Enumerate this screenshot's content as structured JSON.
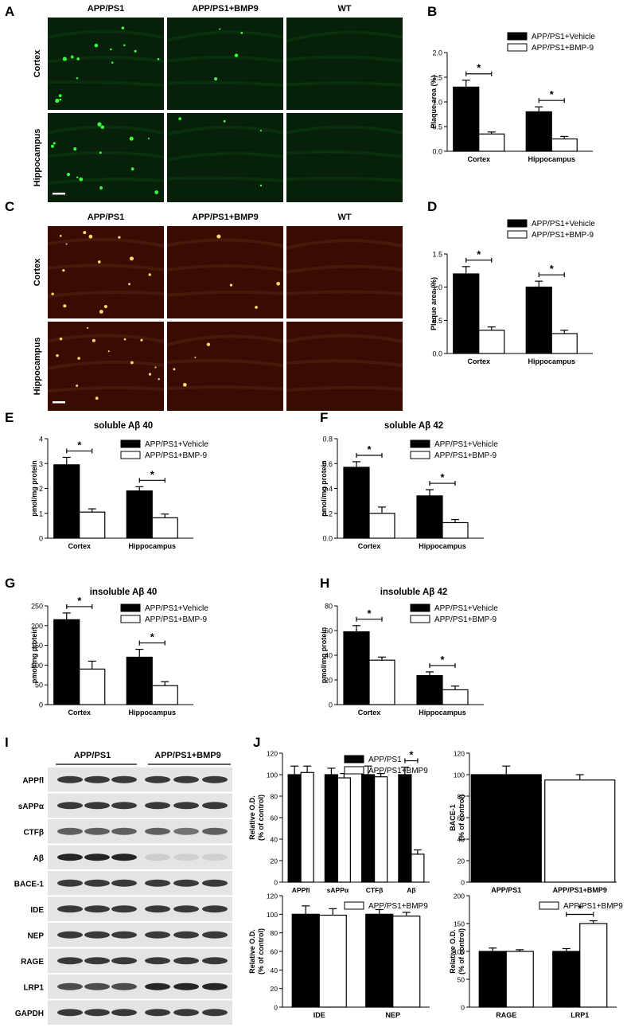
{
  "panel_letters": {
    "A": "A",
    "B": "B",
    "C": "C",
    "D": "D",
    "E": "E",
    "F": "F",
    "G": "G",
    "H": "H",
    "I": "I",
    "J": "J"
  },
  "micrograph_panels": [
    {
      "letter": "A",
      "columns": [
        "APP/PS1",
        "APP/PS1+BMP9",
        "WT"
      ],
      "rows": [
        "Cortex",
        "Hippocampus"
      ],
      "stain": "green-fluorescence",
      "colors": {
        "bg": "#06200a",
        "dot": "#39ff3d"
      }
    },
    {
      "letter": "C",
      "columns": [
        "APP/PS1",
        "APP/PS1+BMP9",
        "WT"
      ],
      "rows": [
        "Cortex",
        "Hippocampus"
      ],
      "stain": "red-fluorescence",
      "colors": {
        "bg": "#3a0b03",
        "dot": "#ffd66b"
      }
    }
  ],
  "western_blot": {
    "letter": "I",
    "groups": [
      "APP/PS1",
      "APP/PS1+BMP9"
    ],
    "rows": [
      "APPfl",
      "sAPPα",
      "CTFβ",
      "Aβ",
      "BACE-1",
      "IDE",
      "NEP",
      "RAGE",
      "LRP1",
      "GAPDH"
    ],
    "lanes": 6
  },
  "colors": {
    "vehicle": "#000000",
    "treated": "#ffffff",
    "outline": "#000000"
  },
  "chart_data": [
    {
      "id": "B",
      "type": "bar",
      "title": "",
      "ylabel": "Plaque area (%)",
      "ylim": [
        0,
        2.0
      ],
      "yticks": [
        "0.0",
        "0.5",
        "1.0",
        "1.5",
        "2.0"
      ],
      "categories": [
        "Cortex",
        "Hippocampus"
      ],
      "series": [
        {
          "name": "APP/PS1+Vehicle",
          "values": [
            1.3,
            0.8
          ],
          "errors": [
            0.14,
            0.1
          ]
        },
        {
          "name": "APP/PS1+BMP-9",
          "values": [
            0.35,
            0.25
          ],
          "errors": [
            0.04,
            0.05
          ]
        }
      ],
      "sig": [
        "*",
        "*"
      ],
      "legend": "top-right"
    },
    {
      "id": "D",
      "type": "bar",
      "title": "",
      "ylabel": "Plaque area (%)",
      "ylim": [
        0,
        1.5
      ],
      "yticks": [
        "0.0",
        "0.5",
        "1.0",
        "1.5"
      ],
      "categories": [
        "Cortex",
        "Hippocampus"
      ],
      "series": [
        {
          "name": "APP/PS1+Vehicle",
          "values": [
            1.2,
            1.0
          ],
          "errors": [
            0.11,
            0.09
          ]
        },
        {
          "name": "APP/PS1+BMP-9",
          "values": [
            0.35,
            0.3
          ],
          "errors": [
            0.05,
            0.05
          ]
        }
      ],
      "sig": [
        "*",
        "*"
      ],
      "legend": "top-right"
    },
    {
      "id": "E",
      "type": "bar",
      "title": "soluble Aβ 40",
      "ylabel": "pmol/mg protein",
      "ylim": [
        0,
        4
      ],
      "yticks": [
        "0",
        "1",
        "2",
        "3",
        "4"
      ],
      "categories": [
        "Cortex",
        "Hippocampus"
      ],
      "series": [
        {
          "name": "APP/PS1+Vehicle",
          "values": [
            2.95,
            1.9
          ],
          "errors": [
            0.3,
            0.17
          ]
        },
        {
          "name": "APP/PS1+BMP-9",
          "values": [
            1.05,
            0.82
          ],
          "errors": [
            0.13,
            0.15
          ]
        }
      ],
      "sig": [
        "*",
        "*"
      ],
      "legend": "top-right"
    },
    {
      "id": "F",
      "type": "bar",
      "title": "soluble Aβ 42",
      "ylabel": "pmol/mg protein",
      "ylim": [
        0,
        0.8
      ],
      "yticks": [
        "0.0",
        "0.2",
        "0.4",
        "0.6",
        "0.8"
      ],
      "categories": [
        "Cortex",
        "Hippocampus"
      ],
      "series": [
        {
          "name": "APP/PS1+Vehicle",
          "values": [
            0.57,
            0.34
          ],
          "errors": [
            0.045,
            0.05
          ]
        },
        {
          "name": "APP/PS1+BMP-9",
          "values": [
            0.2,
            0.125
          ],
          "errors": [
            0.05,
            0.025
          ]
        }
      ],
      "sig": [
        "*",
        "*"
      ],
      "legend": "top-right"
    },
    {
      "id": "G",
      "type": "bar",
      "title": "insoluble Aβ 40",
      "ylabel": "pmol/mg protein",
      "ylim": [
        0,
        250
      ],
      "yticks": [
        "0",
        "50",
        "100",
        "150",
        "200",
        "250"
      ],
      "categories": [
        "Cortex",
        "Hippocampus"
      ],
      "series": [
        {
          "name": "APP/PS1+Vehicle",
          "values": [
            215,
            120
          ],
          "errors": [
            17,
            20
          ]
        },
        {
          "name": "APP/PS1+BMP-9",
          "values": [
            90,
            48
          ],
          "errors": [
            20,
            10
          ]
        }
      ],
      "sig": [
        "*",
        "*"
      ],
      "legend": "top-right"
    },
    {
      "id": "H",
      "type": "bar",
      "title": "insoluble Aβ 42",
      "ylabel": "pmol/mg protein",
      "ylim": [
        0,
        80
      ],
      "yticks": [
        "0",
        "20",
        "40",
        "60",
        "80"
      ],
      "categories": [
        "Cortex",
        "Hippocampus"
      ],
      "series": [
        {
          "name": "APP/PS1+Vehicle",
          "values": [
            59,
            23.5
          ],
          "errors": [
            5,
            3
          ]
        },
        {
          "name": "APP/PS1+BMP-9",
          "values": [
            36,
            12
          ],
          "errors": [
            2.5,
            3
          ]
        }
      ],
      "sig": [
        "*",
        "*"
      ],
      "legend": "top-right"
    },
    {
      "id": "J1",
      "type": "bar",
      "title": "",
      "ylabel": "Relative O.D. (% of control)",
      "ylim": [
        0,
        120
      ],
      "yticks": [
        "0",
        "20",
        "40",
        "60",
        "80",
        "100",
        "120"
      ],
      "categories": [
        "APPfl",
        "sAPPα",
        "CTFβ",
        "Aβ"
      ],
      "series": [
        {
          "name": "APP/PS1",
          "values": [
            100,
            100,
            100,
            100
          ],
          "errors": [
            8,
            6,
            8,
            7
          ]
        },
        {
          "name": "APP/PS1+BMP9",
          "values": [
            102,
            97,
            98,
            26
          ],
          "errors": [
            6,
            4,
            3,
            4
          ]
        }
      ],
      "sig": [
        "",
        "",
        "",
        "*"
      ],
      "legend": "top-right"
    },
    {
      "id": "J2",
      "type": "bar",
      "title": "",
      "ylabel": "BACE-1 (% of control)",
      "ylim": [
        0,
        120
      ],
      "yticks": [
        "0",
        "20",
        "40",
        "60",
        "80",
        "100",
        "120"
      ],
      "categories": [
        "APP/PS1",
        "APP/PS1+BMP9"
      ],
      "values": [
        100,
        95
      ],
      "errors": [
        8,
        5
      ],
      "colors": [
        "#000000",
        "#ffffff"
      ],
      "mode": "single"
    },
    {
      "id": "J3",
      "type": "bar",
      "title": "",
      "ylabel": "Relative O.D. (% of control)",
      "ylim": [
        0,
        120
      ],
      "yticks": [
        "0",
        "20",
        "40",
        "60",
        "80",
        "100",
        "120"
      ],
      "categories": [
        "IDE",
        "NEP"
      ],
      "series": [
        {
          "values": [
            100,
            100
          ],
          "errors": [
            9,
            5
          ]
        },
        {
          "name": "APP/PS1+BMP9",
          "values": [
            99,
            98
          ],
          "errors": [
            7,
            4
          ]
        }
      ],
      "sig": [
        "",
        ""
      ],
      "legend": "top-right"
    },
    {
      "id": "J4",
      "type": "bar",
      "title": "",
      "ylabel": "Relative O.D. (% of control)",
      "ylim": [
        0,
        200
      ],
      "yticks": [
        "0",
        "50",
        "100",
        "150",
        "200"
      ],
      "categories": [
        "RAGE",
        "LRP1"
      ],
      "series": [
        {
          "values": [
            100,
            100
          ],
          "errors": [
            6,
            5
          ]
        },
        {
          "name": "APP/PS1+BMP9",
          "values": [
            100,
            150
          ],
          "errors": [
            3,
            5
          ]
        }
      ],
      "sig": [
        "",
        "*"
      ],
      "legend": "top-right"
    }
  ]
}
